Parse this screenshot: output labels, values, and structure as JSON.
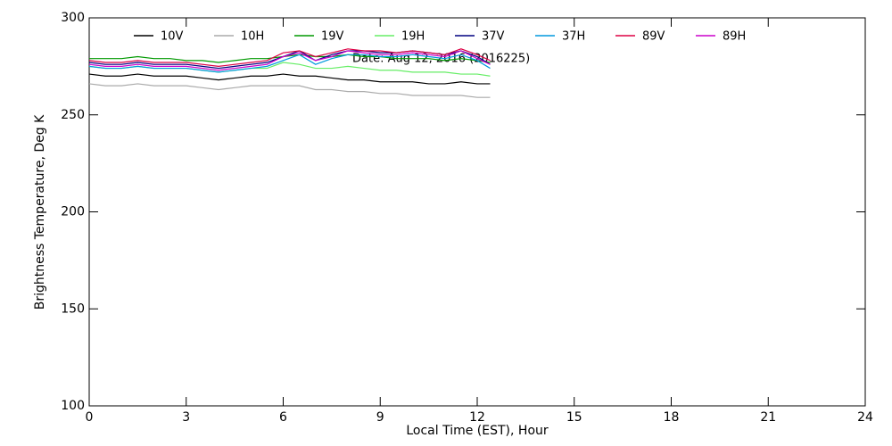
{
  "chart_data": {
    "type": "line",
    "annotation": "Date: Aug 12, 2016 (2016225)",
    "x_label": "Local Time (EST), Hour",
    "y_label": "Brightness Temperature, Deg K",
    "x": [
      0,
      0.5,
      1,
      1.5,
      2,
      2.5,
      3,
      3.5,
      4,
      4.5,
      5,
      5.5,
      6,
      6.5,
      7,
      7.5,
      8,
      8.5,
      9,
      9.5,
      10,
      10.5,
      11,
      11.5,
      12,
      12.4
    ],
    "series": [
      {
        "name": "10V",
        "color": "#000000",
        "values": [
          271,
          270,
          270,
          271,
          270,
          270,
          270,
          269,
          268,
          269,
          270,
          270,
          271,
          270,
          270,
          269,
          268,
          268,
          267,
          267,
          267,
          266,
          266,
          267,
          266,
          266
        ]
      },
      {
        "name": "10H",
        "color": "#aaaaaa",
        "values": [
          266,
          265,
          265,
          266,
          265,
          265,
          265,
          264,
          263,
          264,
          265,
          265,
          265,
          265,
          263,
          263,
          262,
          262,
          261,
          261,
          260,
          260,
          260,
          260,
          259,
          259
        ]
      },
      {
        "name": "19V",
        "color": "#009900",
        "values": [
          279,
          279,
          279,
          280,
          279,
          279,
          278,
          278,
          277,
          278,
          279,
          279,
          280,
          281,
          280,
          280,
          281,
          280,
          280,
          279,
          279,
          279,
          278,
          279,
          278,
          277
        ]
      },
      {
        "name": "19H",
        "color": "#66ee66",
        "values": [
          275,
          274,
          274,
          275,
          274,
          274,
          274,
          273,
          272,
          273,
          274,
          274,
          277,
          276,
          274,
          274,
          275,
          274,
          273,
          273,
          272,
          272,
          272,
          271,
          271,
          270
        ]
      },
      {
        "name": "37V",
        "color": "#000080",
        "values": [
          277,
          276,
          276,
          277,
          276,
          276,
          276,
          275,
          274,
          275,
          276,
          277,
          280,
          283,
          278,
          281,
          283,
          283,
          282,
          282,
          283,
          282,
          281,
          283,
          280,
          276
        ]
      },
      {
        "name": "37H",
        "color": "#0099dd",
        "values": [
          275,
          274,
          274,
          275,
          274,
          274,
          274,
          273,
          272,
          273,
          274,
          275,
          278,
          281,
          276,
          279,
          281,
          281,
          280,
          280,
          281,
          280,
          279,
          281,
          278,
          274
        ]
      },
      {
        "name": "89V",
        "color": "#dd0044",
        "values": [
          278,
          277,
          277,
          278,
          277,
          277,
          277,
          276,
          275,
          276,
          277,
          278,
          282,
          283,
          280,
          282,
          284,
          283,
          283,
          282,
          283,
          282,
          281,
          284,
          281,
          278
        ]
      },
      {
        "name": "89H",
        "color": "#cc00cc",
        "values": [
          276,
          275,
          275,
          276,
          275,
          275,
          275,
          274,
          273,
          274,
          275,
          276,
          280,
          282,
          278,
          280,
          283,
          282,
          281,
          281,
          282,
          281,
          280,
          283,
          279,
          276
        ]
      }
    ],
    "xlim": [
      0,
      24
    ],
    "xticks": [
      0,
      3,
      6,
      9,
      12,
      15,
      18,
      21,
      24
    ],
    "ylim": [
      100,
      300
    ],
    "yticks": [
      100,
      150,
      200,
      250,
      300
    ]
  }
}
